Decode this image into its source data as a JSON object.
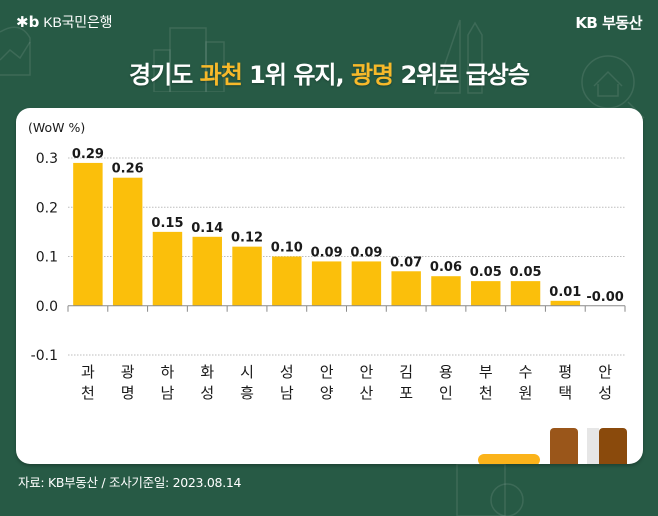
{
  "header": {
    "bank_logo_mark": "✱b",
    "bank_name": "KB국민은행",
    "brand": "KB 부동산",
    "title_parts": [
      {
        "text": "경기도 ",
        "highlight": false
      },
      {
        "text": "과천",
        "highlight": true
      },
      {
        "text": " 1위 유지, ",
        "highlight": false
      },
      {
        "text": "광명",
        "highlight": true
      },
      {
        "text": " 2위로 급상승",
        "highlight": false
      }
    ]
  },
  "footer": {
    "source": "자료: KB부동산 / 조사기준일: 2023.08.14"
  },
  "colors": {
    "background": "#275a45",
    "bar": "#fbbf0b",
    "highlight": "#f7b92a",
    "grid": "#bdbdbd",
    "accent_bar": "#fbb31a",
    "brown_1": "#9a561a",
    "brown_2": "#8a4a0c"
  },
  "chart_data": {
    "type": "bar",
    "title": "경기도 과천 1위 유지, 광명 2위로 급상승",
    "ylabel": "(WoW %)",
    "xlabel": "",
    "ylim": [
      -0.1,
      0.3
    ],
    "yticks": [
      0.3,
      0.2,
      0.1,
      0.0,
      -0.1
    ],
    "ytick_labels": [
      "0.3",
      "0.2",
      "0.1",
      "0.0",
      "-0.1"
    ],
    "grid": true,
    "categories": [
      [
        "과",
        "천"
      ],
      [
        "광",
        "명"
      ],
      [
        "하",
        "남"
      ],
      [
        "화",
        "성"
      ],
      [
        "시",
        "흥"
      ],
      [
        "성",
        "남"
      ],
      [
        "안",
        "양"
      ],
      [
        "안",
        "산"
      ],
      [
        "김",
        "포"
      ],
      [
        "용",
        "인"
      ],
      [
        "부",
        "천"
      ],
      [
        "수",
        "원"
      ],
      [
        "평",
        "택"
      ],
      [
        "안",
        "성"
      ]
    ],
    "values": [
      0.29,
      0.26,
      0.15,
      0.14,
      0.12,
      0.1,
      0.09,
      0.09,
      0.07,
      0.06,
      0.05,
      0.05,
      0.01,
      -0.0
    ],
    "value_labels": [
      "0.29",
      "0.26",
      "0.15",
      "0.14",
      "0.12",
      "0.10",
      "0.09",
      "0.09",
      "0.07",
      "0.06",
      "0.05",
      "0.05",
      "0.01",
      "-0.00"
    ]
  }
}
